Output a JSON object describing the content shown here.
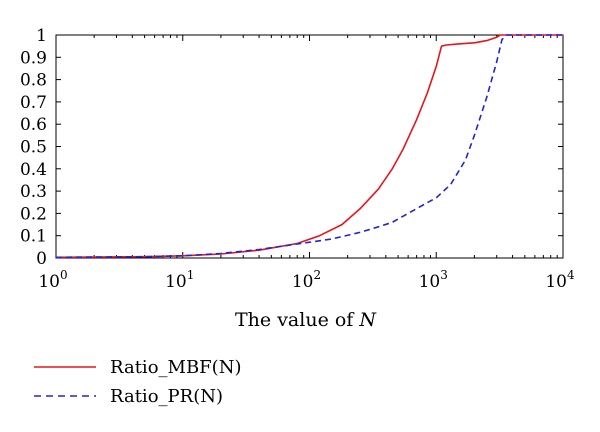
{
  "chart_data": {
    "type": "line",
    "xscale": "log",
    "xlim": [
      1,
      10000
    ],
    "ylim": [
      0,
      1
    ],
    "grid": false,
    "xlabel": {
      "prefix": "The value of ",
      "var": "N"
    },
    "ylabel": "",
    "xticks": [
      {
        "value": 1,
        "base": "10",
        "exp": "0"
      },
      {
        "value": 10,
        "base": "10",
        "exp": "1"
      },
      {
        "value": 100,
        "base": "10",
        "exp": "2"
      },
      {
        "value": 1000,
        "base": "10",
        "exp": "3"
      },
      {
        "value": 10000,
        "base": "10",
        "exp": "4"
      }
    ],
    "yticks": [
      {
        "value": 0,
        "label": "0"
      },
      {
        "value": 0.1,
        "label": "0.1"
      },
      {
        "value": 0.2,
        "label": "0.2"
      },
      {
        "value": 0.3,
        "label": "0.3"
      },
      {
        "value": 0.4,
        "label": "0.4"
      },
      {
        "value": 0.5,
        "label": "0.5"
      },
      {
        "value": 0.6,
        "label": "0.6"
      },
      {
        "value": 0.7,
        "label": "0.7"
      },
      {
        "value": 0.8,
        "label": "0.8"
      },
      {
        "value": 0.9,
        "label": "0.9"
      },
      {
        "value": 1,
        "label": "1"
      }
    ],
    "legend_position": "below",
    "series": [
      {
        "name": "Ratio_MBF(N)",
        "color": "#e8141b",
        "style": "solid",
        "x": [
          1,
          2,
          5,
          10,
          20,
          40,
          80,
          120,
          180,
          250,
          350,
          450,
          550,
          700,
          850,
          1000,
          1100,
          1200,
          1500,
          2000,
          2500,
          3000,
          3200,
          3500,
          5000,
          10000
        ],
        "y": [
          0.003,
          0.004,
          0.006,
          0.01,
          0.018,
          0.035,
          0.065,
          0.1,
          0.15,
          0.22,
          0.31,
          0.4,
          0.49,
          0.62,
          0.74,
          0.86,
          0.95,
          0.955,
          0.96,
          0.965,
          0.975,
          0.99,
          1.0,
          1.0,
          1.0,
          1.0
        ]
      },
      {
        "name": "Ratio_PR(N)",
        "color": "#2222d8",
        "style": "dashed",
        "x": [
          1,
          2,
          5,
          10,
          20,
          40,
          80,
          150,
          250,
          350,
          450,
          600,
          800,
          1000,
          1300,
          1700,
          2000,
          2500,
          3000,
          3300,
          3600,
          5000,
          10000
        ],
        "y": [
          0.003,
          0.004,
          0.006,
          0.01,
          0.02,
          0.038,
          0.063,
          0.085,
          0.115,
          0.14,
          0.16,
          0.2,
          0.24,
          0.27,
          0.33,
          0.44,
          0.55,
          0.72,
          0.88,
          0.98,
          1.0,
          1.0,
          1.0
        ]
      }
    ]
  }
}
